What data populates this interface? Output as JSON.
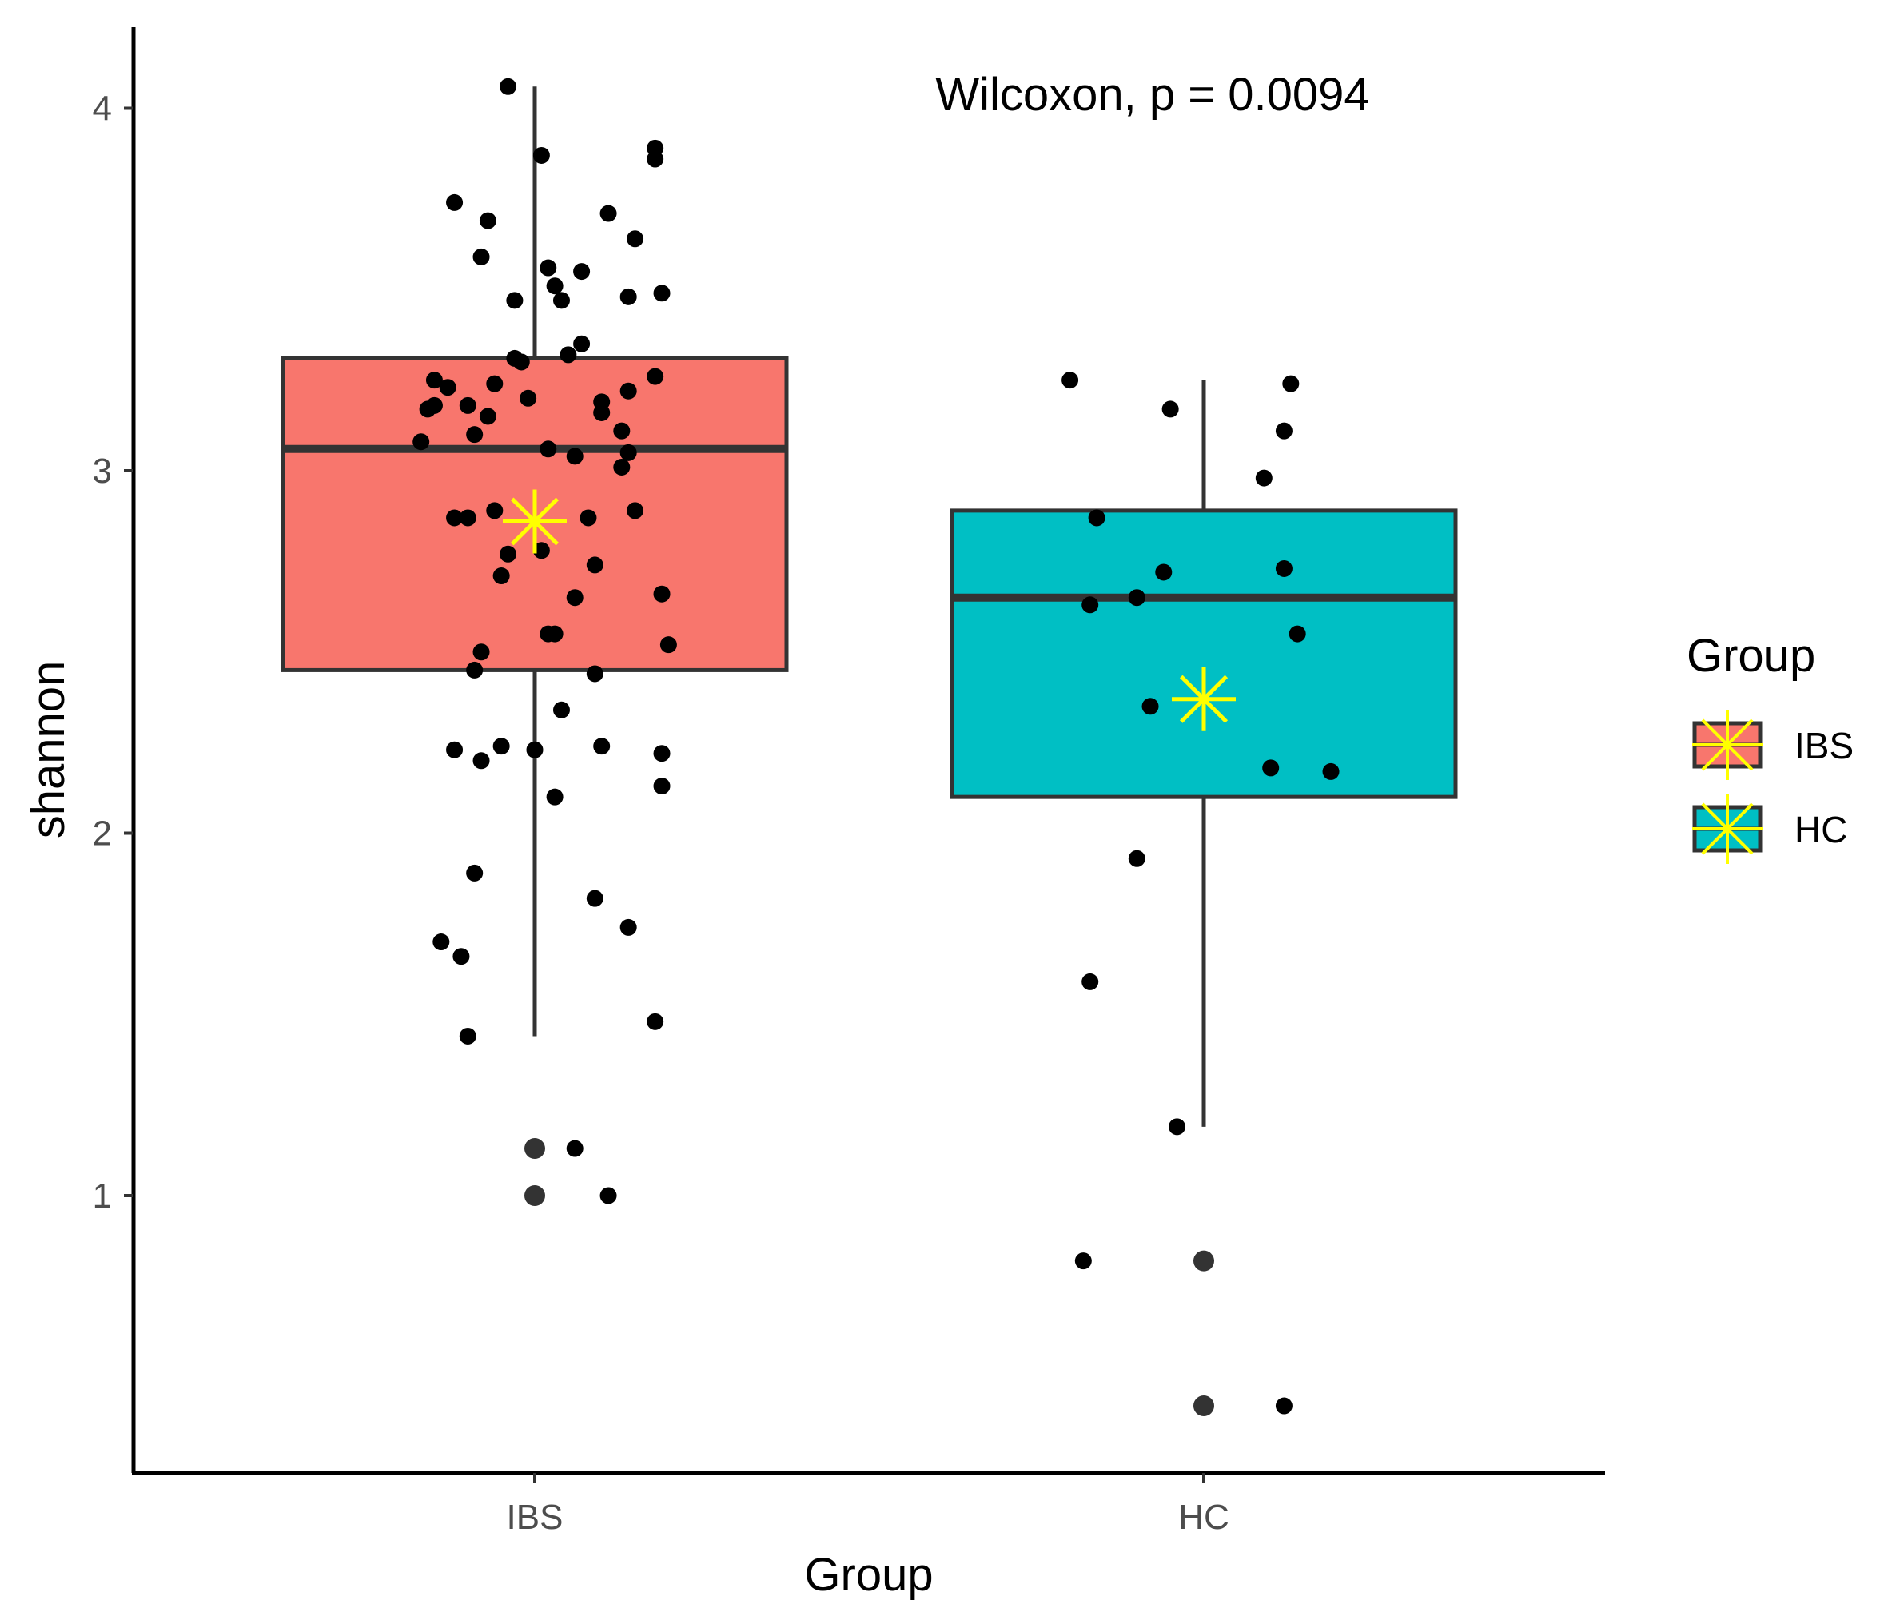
{
  "chart_data": {
    "type": "boxplot",
    "title": "",
    "xlabel": "Group",
    "ylabel": "shannon",
    "ylim": [
      0.25,
      4.25
    ],
    "yticks": [
      1,
      2,
      3,
      4
    ],
    "categories": [
      "IBS",
      "HC"
    ],
    "annotation": "Wilcoxon, p = 0.0094",
    "legend": {
      "title": "Group",
      "position": "right",
      "entries": [
        {
          "label": "IBS",
          "color": "#F8766D"
        },
        {
          "label": "HC",
          "color": "#00BFC4"
        }
      ]
    },
    "colors": {
      "box_line": "#333333",
      "mean_marker": "#FFFF00",
      "point": "#000000",
      "outlier": "#333333"
    },
    "boxes": [
      {
        "group": "IBS",
        "lower_whisker": 1.44,
        "q1": 2.45,
        "median": 3.06,
        "q3": 3.31,
        "upper_whisker": 4.06,
        "mean": 2.86,
        "outliers": [
          1.13,
          1.0
        ]
      },
      {
        "group": "HC",
        "lower_whisker": 1.19,
        "q1": 2.1,
        "median": 2.65,
        "q3": 2.89,
        "upper_whisker": 3.25,
        "mean": 2.37,
        "outliers": [
          0.82,
          0.42
        ]
      }
    ],
    "points": [
      {
        "group": "IBS",
        "values": [
          {
            "o": -0.04,
            "v": 4.06
          },
          {
            "o": 0.01,
            "v": 3.87
          },
          {
            "o": 0.18,
            "v": 3.89
          },
          {
            "o": 0.18,
            "v": 3.86
          },
          {
            "o": -0.12,
            "v": 3.74
          },
          {
            "o": -0.07,
            "v": 3.69
          },
          {
            "o": 0.11,
            "v": 3.71
          },
          {
            "o": 0.15,
            "v": 3.64
          },
          {
            "o": -0.08,
            "v": 3.59
          },
          {
            "o": 0.02,
            "v": 3.56
          },
          {
            "o": 0.07,
            "v": 3.55
          },
          {
            "o": 0.03,
            "v": 3.51
          },
          {
            "o": -0.03,
            "v": 3.47
          },
          {
            "o": 0.04,
            "v": 3.47
          },
          {
            "o": 0.14,
            "v": 3.48
          },
          {
            "o": 0.19,
            "v": 3.49
          },
          {
            "o": 0.07,
            "v": 3.35
          },
          {
            "o": 0.05,
            "v": 3.32
          },
          {
            "o": -0.03,
            "v": 3.31
          },
          {
            "o": -0.02,
            "v": 3.3
          },
          {
            "o": -0.15,
            "v": 3.25
          },
          {
            "o": -0.13,
            "v": 3.23
          },
          {
            "o": -0.06,
            "v": 3.24
          },
          {
            "o": 0.14,
            "v": 3.22
          },
          {
            "o": 0.18,
            "v": 3.26
          },
          {
            "o": -0.01,
            "v": 3.2
          },
          {
            "o": -0.16,
            "v": 3.17
          },
          {
            "o": -0.15,
            "v": 3.18
          },
          {
            "o": -0.1,
            "v": 3.18
          },
          {
            "o": -0.07,
            "v": 3.15
          },
          {
            "o": 0.1,
            "v": 3.19
          },
          {
            "o": 0.1,
            "v": 3.16
          },
          {
            "o": 0.13,
            "v": 3.11
          },
          {
            "o": -0.09,
            "v": 3.1
          },
          {
            "o": -0.17,
            "v": 3.08
          },
          {
            "o": 0.02,
            "v": 3.06
          },
          {
            "o": 0.06,
            "v": 3.04
          },
          {
            "o": 0.14,
            "v": 3.05
          },
          {
            "o": 0.13,
            "v": 3.01
          },
          {
            "o": -0.06,
            "v": 2.89
          },
          {
            "o": -0.12,
            "v": 2.87
          },
          {
            "o": -0.1,
            "v": 2.87
          },
          {
            "o": 0.08,
            "v": 2.87
          },
          {
            "o": 0.15,
            "v": 2.89
          },
          {
            "o": -0.04,
            "v": 2.77
          },
          {
            "o": 0.01,
            "v": 2.78
          },
          {
            "o": 0.09,
            "v": 2.74
          },
          {
            "o": -0.05,
            "v": 2.71
          },
          {
            "o": 0.06,
            "v": 2.65
          },
          {
            "o": 0.19,
            "v": 2.66
          },
          {
            "o": 0.02,
            "v": 2.55
          },
          {
            "o": 0.03,
            "v": 2.55
          },
          {
            "o": 0.2,
            "v": 2.52
          },
          {
            "o": -0.08,
            "v": 2.5
          },
          {
            "o": -0.09,
            "v": 2.45
          },
          {
            "o": 0.09,
            "v": 2.44
          },
          {
            "o": 0.04,
            "v": 2.34
          },
          {
            "o": -0.12,
            "v": 2.23
          },
          {
            "o": -0.05,
            "v": 2.24
          },
          {
            "o": -0.08,
            "v": 2.2
          },
          {
            "o": 0.0,
            "v": 2.23
          },
          {
            "o": 0.1,
            "v": 2.24
          },
          {
            "o": 0.19,
            "v": 2.22
          },
          {
            "o": 0.19,
            "v": 2.13
          },
          {
            "o": 0.03,
            "v": 2.1
          },
          {
            "o": -0.09,
            "v": 1.89
          },
          {
            "o": 0.09,
            "v": 1.82
          },
          {
            "o": 0.14,
            "v": 1.74
          },
          {
            "o": -0.14,
            "v": 1.7
          },
          {
            "o": -0.11,
            "v": 1.66
          },
          {
            "o": 0.18,
            "v": 1.48
          },
          {
            "o": -0.1,
            "v": 1.44
          },
          {
            "o": 0.06,
            "v": 1.13
          },
          {
            "o": 0.11,
            "v": 1.0
          }
        ]
      },
      {
        "group": "HC",
        "values": [
          {
            "o": -0.2,
            "v": 3.25
          },
          {
            "o": 0.13,
            "v": 3.24
          },
          {
            "o": -0.05,
            "v": 3.17
          },
          {
            "o": 0.12,
            "v": 3.11
          },
          {
            "o": 0.09,
            "v": 2.98
          },
          {
            "o": -0.16,
            "v": 2.87
          },
          {
            "o": -0.06,
            "v": 2.72
          },
          {
            "o": 0.12,
            "v": 2.73
          },
          {
            "o": -0.1,
            "v": 2.65
          },
          {
            "o": -0.17,
            "v": 2.63
          },
          {
            "o": 0.14,
            "v": 2.55
          },
          {
            "o": -0.08,
            "v": 2.35
          },
          {
            "o": 0.1,
            "v": 2.18
          },
          {
            "o": 0.19,
            "v": 2.17
          },
          {
            "o": -0.1,
            "v": 1.93
          },
          {
            "o": -0.17,
            "v": 1.59
          },
          {
            "o": -0.04,
            "v": 1.19
          },
          {
            "o": -0.18,
            "v": 0.82
          },
          {
            "o": 0.12,
            "v": 0.42
          }
        ]
      }
    ]
  }
}
